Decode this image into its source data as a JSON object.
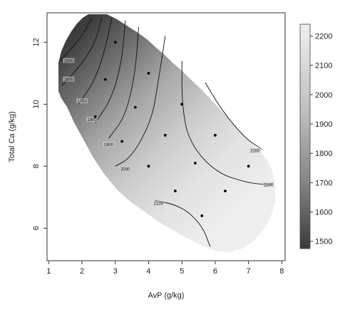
{
  "chart_data": {
    "type": "heatmap",
    "subtype": "filled-contour",
    "title": "",
    "xlabel": "AvP (g/kg)",
    "ylabel": "Total Ca (g/kg)",
    "xlim": [
      0.95,
      8.1
    ],
    "ylim": [
      4.95,
      12.95
    ],
    "x_ticks": [
      1,
      2,
      3,
      4,
      5,
      6,
      7,
      8
    ],
    "y_ticks": [
      6,
      8,
      10,
      12
    ],
    "grid": false,
    "colorbar": {
      "placement": "right",
      "range": [
        1475,
        2240
      ],
      "ticks": [
        1500,
        1600,
        1700,
        1800,
        1900,
        2000,
        2100,
        2200
      ],
      "low_color": "#3a3a3a",
      "high_color": "#efefef"
    },
    "points": [
      {
        "x": 3.0,
        "y": 12.0
      },
      {
        "x": 2.7,
        "y": 10.8
      },
      {
        "x": 4.0,
        "y": 11.0
      },
      {
        "x": 2.4,
        "y": 9.6
      },
      {
        "x": 3.6,
        "y": 9.9
      },
      {
        "x": 5.0,
        "y": 10.0
      },
      {
        "x": 3.2,
        "y": 8.8
      },
      {
        "x": 4.5,
        "y": 9.0
      },
      {
        "x": 6.0,
        "y": 9.0
      },
      {
        "x": 4.0,
        "y": 8.0
      },
      {
        "x": 5.4,
        "y": 8.1
      },
      {
        "x": 7.0,
        "y": 8.0
      },
      {
        "x": 4.8,
        "y": 7.2
      },
      {
        "x": 6.3,
        "y": 7.2
      },
      {
        "x": 5.6,
        "y": 6.4
      }
    ],
    "contours": [
      {
        "label": "1500",
        "path": [
          [
            2.3,
            12.8
          ],
          [
            2.0,
            12.2
          ],
          [
            1.6,
            11.7
          ],
          [
            1.35,
            11.4
          ]
        ],
        "label_at": [
          1.6,
          11.4
        ]
      },
      {
        "label": "1600",
        "path": [
          [
            2.6,
            12.8
          ],
          [
            2.4,
            12.0
          ],
          [
            2.0,
            11.3
          ],
          [
            1.4,
            10.6
          ]
        ],
        "label_at": [
          1.6,
          10.8
        ]
      },
      {
        "label": "1700",
        "path": [
          [
            2.9,
            12.8
          ],
          [
            2.7,
            11.8
          ],
          [
            2.4,
            10.8
          ],
          [
            1.9,
            10.0
          ]
        ],
        "label_at": [
          2.0,
          10.1
        ]
      },
      {
        "label": "1800",
        "path": [
          [
            3.3,
            12.7
          ],
          [
            3.2,
            11.4
          ],
          [
            2.9,
            10.2
          ],
          [
            2.4,
            9.4
          ]
        ],
        "label_at": [
          2.3,
          9.5
        ]
      },
      {
        "label": "1900",
        "path": [
          [
            3.7,
            12.5
          ],
          [
            3.6,
            11.0
          ],
          [
            3.3,
            9.6
          ],
          [
            2.8,
            8.9
          ]
        ],
        "label_at": [
          2.8,
          8.7
        ]
      },
      {
        "label": "2000",
        "path": [
          [
            4.5,
            12.2
          ],
          [
            4.3,
            10.8
          ],
          [
            4.1,
            9.5
          ],
          [
            3.5,
            8.3
          ],
          [
            3.0,
            8.0
          ]
        ],
        "label_at": [
          3.3,
          7.9
        ]
      },
      {
        "label": "2100",
        "path": [
          [
            5.0,
            11.4
          ],
          [
            5.0,
            10.0
          ],
          [
            5.2,
            8.8
          ],
          [
            6.0,
            7.8
          ],
          [
            7.0,
            7.45
          ],
          [
            7.7,
            7.4
          ]
        ],
        "label_at": [
          7.6,
          7.4
        ]
      },
      {
        "label": "2100",
        "path": [
          [
            4.2,
            6.9
          ],
          [
            5.0,
            6.7
          ],
          [
            5.6,
            6.1
          ],
          [
            5.85,
            5.4
          ]
        ],
        "label_at": [
          4.3,
          6.8
        ]
      },
      {
        "label": "2200",
        "path": [
          [
            5.7,
            10.7
          ],
          [
            6.2,
            9.8
          ],
          [
            6.9,
            8.9
          ],
          [
            7.4,
            8.55
          ]
        ],
        "label_at": [
          7.2,
          8.5
        ]
      }
    ]
  }
}
